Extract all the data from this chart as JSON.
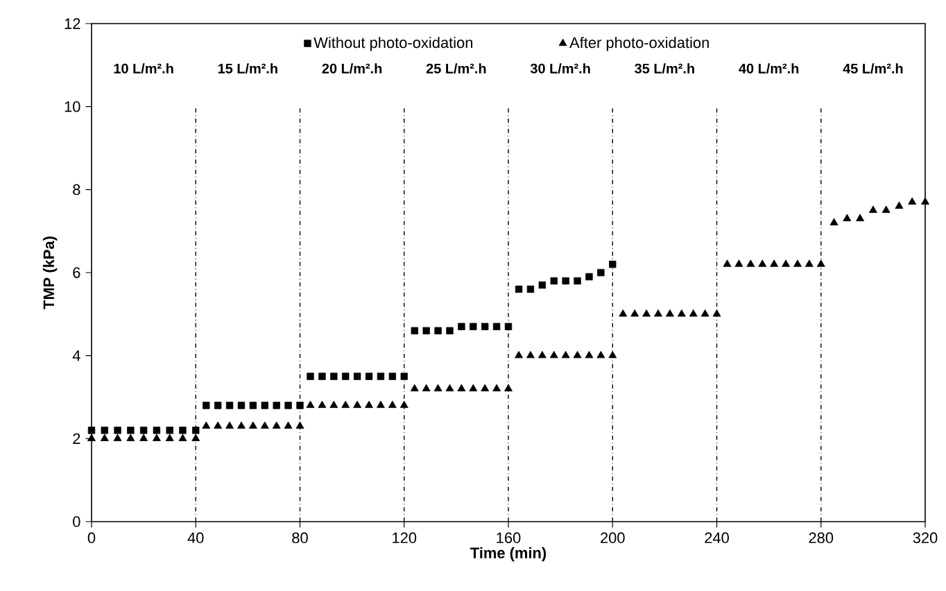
{
  "chart_data": {
    "type": "scatter",
    "xlabel": "Time (min)",
    "ylabel": "TMP (kPa)",
    "xlim": [
      0,
      320
    ],
    "xticks": [
      0,
      40,
      80,
      120,
      160,
      200,
      240,
      280,
      320
    ],
    "ylim": [
      0,
      12
    ],
    "yticks": [
      0,
      2,
      4,
      6,
      8,
      10,
      12
    ],
    "grid": false,
    "legend": "top",
    "series": [
      {
        "name": "Without photo-oxidation",
        "color": "#000000",
        "marker": "square",
        "x": [
          0,
          5,
          10,
          15,
          20,
          25,
          30,
          35,
          40,
          44,
          48.5,
          53,
          57.5,
          62,
          66.5,
          71,
          75.5,
          80,
          84,
          88.5,
          93,
          97.5,
          102,
          106.5,
          111,
          115.5,
          120,
          124,
          128.5,
          133,
          137.5,
          142,
          146.5,
          151,
          155.5,
          160,
          164,
          168.5,
          173,
          177.5,
          182,
          186.5,
          191,
          195.5,
          200
        ],
        "values": [
          2.2,
          2.2,
          2.2,
          2.2,
          2.2,
          2.2,
          2.2,
          2.2,
          2.2,
          2.8,
          2.8,
          2.8,
          2.8,
          2.8,
          2.8,
          2.8,
          2.8,
          2.8,
          3.5,
          3.5,
          3.5,
          3.5,
          3.5,
          3.5,
          3.5,
          3.5,
          3.5,
          4.6,
          4.6,
          4.6,
          4.6,
          4.7,
          4.7,
          4.7,
          4.7,
          4.7,
          5.6,
          5.6,
          5.7,
          5.8,
          5.8,
          5.8,
          5.9,
          6.0,
          6.2
        ]
      },
      {
        "name": "After photo-oxidation",
        "color": "#000000",
        "marker": "triangle",
        "x": [
          0,
          5,
          10,
          15,
          20,
          25,
          30,
          35,
          40,
          44,
          48.5,
          53,
          57.5,
          62,
          66.5,
          71,
          75.5,
          80,
          84,
          88.5,
          93,
          97.5,
          102,
          106.5,
          111,
          115.5,
          120,
          124,
          128.5,
          133,
          137.5,
          142,
          146.5,
          151,
          155.5,
          160,
          164,
          168.5,
          173,
          177.5,
          182,
          186.5,
          191,
          195.5,
          200,
          204,
          208.5,
          213,
          217.5,
          222,
          226.5,
          231,
          235.5,
          240,
          244,
          248.5,
          253,
          257.5,
          262,
          266.5,
          271,
          275.5,
          280,
          285,
          290,
          295,
          300,
          305,
          310,
          315,
          320
        ],
        "values": [
          2.0,
          2.0,
          2.0,
          2.0,
          2.0,
          2.0,
          2.0,
          2.0,
          2.0,
          2.3,
          2.3,
          2.3,
          2.3,
          2.3,
          2.3,
          2.3,
          2.3,
          2.3,
          2.8,
          2.8,
          2.8,
          2.8,
          2.8,
          2.8,
          2.8,
          2.8,
          2.8,
          3.2,
          3.2,
          3.2,
          3.2,
          3.2,
          3.2,
          3.2,
          3.2,
          3.2,
          4.0,
          4.0,
          4.0,
          4.0,
          4.0,
          4.0,
          4.0,
          4.0,
          4.0,
          5.0,
          5.0,
          5.0,
          5.0,
          5.0,
          5.0,
          5.0,
          5.0,
          5.0,
          6.2,
          6.2,
          6.2,
          6.2,
          6.2,
          6.2,
          6.2,
          6.2,
          6.2,
          7.2,
          7.3,
          7.3,
          7.5,
          7.5,
          7.6,
          7.7,
          7.7
        ]
      }
    ],
    "ref_lines": [
      {
        "axis": "x",
        "value": 40,
        "line_style": "dashed"
      },
      {
        "axis": "x",
        "value": 80,
        "line_style": "dashed"
      },
      {
        "axis": "x",
        "value": 120,
        "line_style": "dashed"
      },
      {
        "axis": "x",
        "value": 160,
        "line_style": "dashed"
      },
      {
        "axis": "x",
        "value": 200,
        "line_style": "dashed"
      },
      {
        "axis": "x",
        "value": 240,
        "line_style": "dashed"
      },
      {
        "axis": "x",
        "value": 280,
        "line_style": "dashed"
      }
    ],
    "annotations": [
      "10 L/m².h",
      "15 L/m².h",
      "20 L/m².h",
      "25 L/m².h",
      "30 L/m².h",
      "35 L/m².h",
      "40 L/m².h",
      "45 L/m².h"
    ]
  }
}
